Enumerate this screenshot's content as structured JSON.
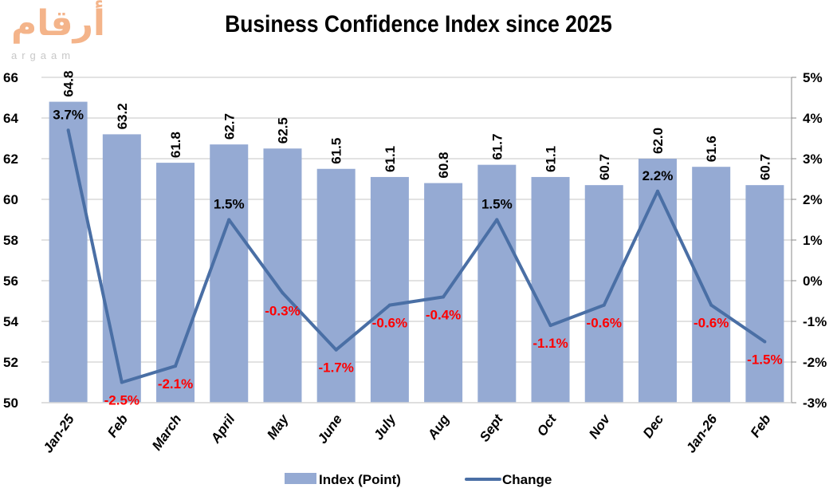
{
  "logo": {
    "arabic": "أرقام",
    "latin": "argaam"
  },
  "chart_data": {
    "type": "bar",
    "title": "Business Confidence Index since 2025",
    "categories": [
      "Jan-25",
      "Feb",
      "March",
      "April",
      "May",
      "June",
      "July",
      "Aug",
      "Sept",
      "Oct",
      "Nov",
      "Dec",
      "Jan-26",
      "Feb"
    ],
    "series": [
      {
        "name": "Index (Point)",
        "type": "bar",
        "axis": "left",
        "color": "#95aad3",
        "values": [
          64.8,
          63.2,
          61.8,
          62.7,
          62.5,
          61.5,
          61.1,
          60.8,
          61.7,
          61.1,
          60.7,
          62.0,
          61.6,
          60.7
        ],
        "labels": [
          "64.8",
          "63.2",
          "61.8",
          "62.7",
          "62.5",
          "61.5",
          "61.1",
          "60.8",
          "61.7",
          "61.1",
          "60.7",
          "62.0",
          "61.6",
          "60.7"
        ]
      },
      {
        "name": "Change",
        "type": "line",
        "axis": "right",
        "color": "#4a6fa5",
        "values": [
          3.7,
          -2.5,
          -2.1,
          1.5,
          -0.3,
          -1.7,
          -0.6,
          -0.4,
          1.5,
          -1.1,
          -0.6,
          2.2,
          -0.6,
          -1.5
        ],
        "labels": [
          "3.7%",
          "-2.5%",
          "-2.1%",
          "1.5%",
          "-0.3%",
          "-1.7%",
          "-0.6%",
          "-0.4%",
          "1.5%",
          "-1.1%",
          "-0.6%",
          "2.2%",
          "-0.6%",
          "-1.5%"
        ]
      }
    ],
    "ylim_left": [
      50,
      66
    ],
    "yticks_left": [
      "50",
      "52",
      "54",
      "56",
      "58",
      "60",
      "62",
      "64",
      "66"
    ],
    "ylim_right": [
      -3,
      5
    ],
    "yticks_right": [
      "-3%",
      "-2%",
      "-1%",
      "0%",
      "1%",
      "2%",
      "3%",
      "4%",
      "5%"
    ],
    "grid": true,
    "legend": "bottom",
    "negative_label_color": "#ff0000",
    "positive_label_color": "#000000"
  }
}
